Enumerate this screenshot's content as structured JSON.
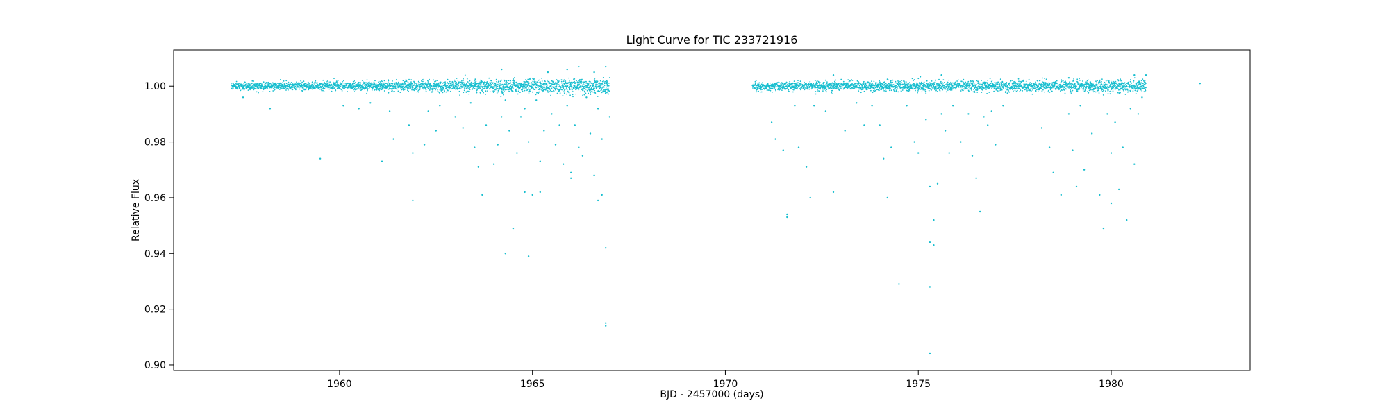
{
  "chart_data": {
    "type": "scatter",
    "title": "Light Curve for TIC 233721916",
    "xlabel": "BJD - 2457000 (days)",
    "ylabel": "Relative Flux",
    "xlim": [
      1955.7,
      1983.6
    ],
    "ylim": [
      0.898,
      1.013
    ],
    "xticks": [
      1960,
      1965,
      1970,
      1975,
      1980
    ],
    "xtick_labels": [
      "1960",
      "1965",
      "1970",
      "1975",
      "1980"
    ],
    "yticks": [
      0.9,
      0.92,
      0.94,
      0.96,
      0.98,
      1.0
    ],
    "ytick_labels": [
      "0.90",
      "0.92",
      "0.94",
      "0.96",
      "0.98",
      "1.00"
    ],
    "grid": false,
    "legend": "none",
    "marker_color": "#17becf",
    "series": [
      {
        "baseline_segments": [
          {
            "x_start": 1957.2,
            "x_end": 1967.0,
            "y_center": 1.0,
            "spread_start": 0.0012,
            "spread_end": 0.0028
          },
          {
            "x_start": 1970.7,
            "x_end": 1980.9,
            "y_center": 1.0,
            "spread_start": 0.0015,
            "spread_end": 0.0022
          }
        ],
        "outliers": [
          {
            "x": 1957.5,
            "y": 0.996
          },
          {
            "x": 1958.2,
            "y": 0.992
          },
          {
            "x": 1959.5,
            "y": 0.974
          },
          {
            "x": 1960.1,
            "y": 0.993
          },
          {
            "x": 1960.5,
            "y": 0.992
          },
          {
            "x": 1960.8,
            "y": 0.994
          },
          {
            "x": 1961.1,
            "y": 0.973
          },
          {
            "x": 1961.3,
            "y": 0.991
          },
          {
            "x": 1961.4,
            "y": 0.981
          },
          {
            "x": 1961.8,
            "y": 0.986
          },
          {
            "x": 1961.9,
            "y": 0.976
          },
          {
            "x": 1961.9,
            "y": 0.959
          },
          {
            "x": 1962.2,
            "y": 0.979
          },
          {
            "x": 1962.3,
            "y": 0.991
          },
          {
            "x": 1962.5,
            "y": 0.984
          },
          {
            "x": 1962.6,
            "y": 0.993
          },
          {
            "x": 1963.0,
            "y": 0.989
          },
          {
            "x": 1963.2,
            "y": 0.985
          },
          {
            "x": 1963.4,
            "y": 0.994
          },
          {
            "x": 1963.5,
            "y": 0.978
          },
          {
            "x": 1963.6,
            "y": 0.971
          },
          {
            "x": 1963.7,
            "y": 0.961
          },
          {
            "x": 1963.8,
            "y": 0.986
          },
          {
            "x": 1964.0,
            "y": 0.972
          },
          {
            "x": 1964.1,
            "y": 0.979
          },
          {
            "x": 1964.2,
            "y": 0.989
          },
          {
            "x": 1964.3,
            "y": 0.995
          },
          {
            "x": 1964.3,
            "y": 0.94
          },
          {
            "x": 1964.4,
            "y": 0.984
          },
          {
            "x": 1964.5,
            "y": 0.949
          },
          {
            "x": 1964.6,
            "y": 0.976
          },
          {
            "x": 1964.7,
            "y": 0.989
          },
          {
            "x": 1964.8,
            "y": 0.992
          },
          {
            "x": 1964.8,
            "y": 0.962
          },
          {
            "x": 1964.9,
            "y": 0.98
          },
          {
            "x": 1964.9,
            "y": 0.939
          },
          {
            "x": 1965.0,
            "y": 0.961
          },
          {
            "x": 1965.1,
            "y": 0.995
          },
          {
            "x": 1965.2,
            "y": 0.973
          },
          {
            "x": 1965.2,
            "y": 0.962
          },
          {
            "x": 1965.3,
            "y": 0.984
          },
          {
            "x": 1965.5,
            "y": 0.99
          },
          {
            "x": 1965.6,
            "y": 0.979
          },
          {
            "x": 1965.7,
            "y": 0.986
          },
          {
            "x": 1965.8,
            "y": 0.972
          },
          {
            "x": 1965.9,
            "y": 0.993
          },
          {
            "x": 1966.0,
            "y": 0.969
          },
          {
            "x": 1966.0,
            "y": 0.967
          },
          {
            "x": 1966.1,
            "y": 0.986
          },
          {
            "x": 1966.2,
            "y": 0.978
          },
          {
            "x": 1966.3,
            "y": 0.975
          },
          {
            "x": 1966.4,
            "y": 0.996
          },
          {
            "x": 1966.5,
            "y": 0.983
          },
          {
            "x": 1966.6,
            "y": 0.968
          },
          {
            "x": 1966.7,
            "y": 0.992
          },
          {
            "x": 1966.7,
            "y": 0.959
          },
          {
            "x": 1966.8,
            "y": 0.981
          },
          {
            "x": 1966.8,
            "y": 0.961
          },
          {
            "x": 1966.9,
            "y": 0.942
          },
          {
            "x": 1966.9,
            "y": 0.915
          },
          {
            "x": 1966.9,
            "y": 0.914
          },
          {
            "x": 1967.0,
            "y": 0.989
          },
          {
            "x": 1964.2,
            "y": 1.006
          },
          {
            "x": 1965.4,
            "y": 1.005
          },
          {
            "x": 1965.9,
            "y": 1.006
          },
          {
            "x": 1966.2,
            "y": 1.007
          },
          {
            "x": 1966.6,
            "y": 1.005
          },
          {
            "x": 1966.9,
            "y": 1.007
          },
          {
            "x": 1971.2,
            "y": 0.987
          },
          {
            "x": 1971.3,
            "y": 0.981
          },
          {
            "x": 1971.5,
            "y": 0.977
          },
          {
            "x": 1971.6,
            "y": 0.954
          },
          {
            "x": 1971.6,
            "y": 0.953
          },
          {
            "x": 1971.8,
            "y": 0.993
          },
          {
            "x": 1971.9,
            "y": 0.978
          },
          {
            "x": 1972.1,
            "y": 0.971
          },
          {
            "x": 1972.2,
            "y": 0.96
          },
          {
            "x": 1972.3,
            "y": 0.993
          },
          {
            "x": 1972.6,
            "y": 0.991
          },
          {
            "x": 1972.8,
            "y": 0.962
          },
          {
            "x": 1973.1,
            "y": 0.984
          },
          {
            "x": 1973.4,
            "y": 0.994
          },
          {
            "x": 1973.6,
            "y": 0.986
          },
          {
            "x": 1973.8,
            "y": 0.993
          },
          {
            "x": 1974.0,
            "y": 0.986
          },
          {
            "x": 1974.1,
            "y": 0.974
          },
          {
            "x": 1974.2,
            "y": 0.96
          },
          {
            "x": 1974.3,
            "y": 0.978
          },
          {
            "x": 1974.5,
            "y": 0.929
          },
          {
            "x": 1974.7,
            "y": 0.993
          },
          {
            "x": 1974.9,
            "y": 0.98
          },
          {
            "x": 1975.0,
            "y": 0.976
          },
          {
            "x": 1975.2,
            "y": 0.988
          },
          {
            "x": 1975.3,
            "y": 0.964
          },
          {
            "x": 1975.3,
            "y": 0.944
          },
          {
            "x": 1975.3,
            "y": 0.928
          },
          {
            "x": 1975.3,
            "y": 0.904
          },
          {
            "x": 1975.4,
            "y": 0.952
          },
          {
            "x": 1975.4,
            "y": 0.943
          },
          {
            "x": 1975.5,
            "y": 0.965
          },
          {
            "x": 1975.6,
            "y": 0.99
          },
          {
            "x": 1975.7,
            "y": 0.984
          },
          {
            "x": 1975.8,
            "y": 0.976
          },
          {
            "x": 1975.9,
            "y": 0.993
          },
          {
            "x": 1976.1,
            "y": 0.98
          },
          {
            "x": 1976.3,
            "y": 0.99
          },
          {
            "x": 1976.4,
            "y": 0.975
          },
          {
            "x": 1976.5,
            "y": 0.967
          },
          {
            "x": 1976.6,
            "y": 0.955
          },
          {
            "x": 1976.7,
            "y": 0.989
          },
          {
            "x": 1976.8,
            "y": 0.986
          },
          {
            "x": 1976.9,
            "y": 0.991
          },
          {
            "x": 1977.0,
            "y": 0.979
          },
          {
            "x": 1977.2,
            "y": 0.993
          },
          {
            "x": 1978.2,
            "y": 0.985
          },
          {
            "x": 1978.4,
            "y": 0.978
          },
          {
            "x": 1978.5,
            "y": 0.969
          },
          {
            "x": 1978.7,
            "y": 0.961
          },
          {
            "x": 1978.9,
            "y": 0.99
          },
          {
            "x": 1979.0,
            "y": 0.977
          },
          {
            "x": 1979.1,
            "y": 0.964
          },
          {
            "x": 1979.2,
            "y": 0.993
          },
          {
            "x": 1979.3,
            "y": 0.97
          },
          {
            "x": 1979.5,
            "y": 0.983
          },
          {
            "x": 1979.7,
            "y": 0.961
          },
          {
            "x": 1979.8,
            "y": 0.949
          },
          {
            "x": 1979.9,
            "y": 0.99
          },
          {
            "x": 1980.0,
            "y": 0.976
          },
          {
            "x": 1980.0,
            "y": 0.958
          },
          {
            "x": 1980.1,
            "y": 0.987
          },
          {
            "x": 1980.2,
            "y": 0.963
          },
          {
            "x": 1980.3,
            "y": 0.978
          },
          {
            "x": 1980.4,
            "y": 0.952
          },
          {
            "x": 1980.5,
            "y": 0.992
          },
          {
            "x": 1980.6,
            "y": 0.972
          },
          {
            "x": 1980.7,
            "y": 0.99
          },
          {
            "x": 1980.8,
            "y": 0.996
          },
          {
            "x": 1972.8,
            "y": 1.004
          },
          {
            "x": 1975.6,
            "y": 1.004
          },
          {
            "x": 1978.9,
            "y": 1.003
          },
          {
            "x": 1980.6,
            "y": 1.004
          },
          {
            "x": 1980.9,
            "y": 1.004
          },
          {
            "x": 1982.3,
            "y": 1.001
          }
        ]
      }
    ]
  }
}
